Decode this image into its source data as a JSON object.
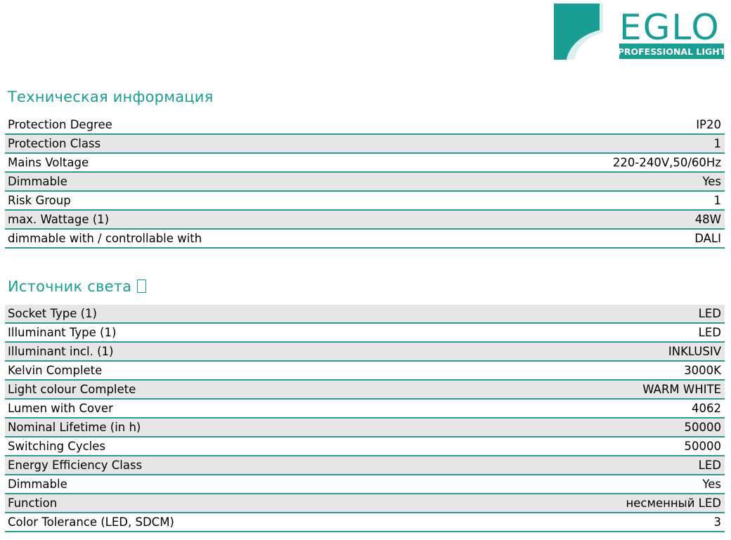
{
  "brand": {
    "name": "EGLO",
    "tagline": "PROFESSIONAL LIGHT",
    "color": "#1a9e94"
  },
  "sections": [
    {
      "title": "Техническая информация",
      "rows": [
        {
          "label": "Protection Degree",
          "value": "IP20"
        },
        {
          "label": "Protection Class",
          "value": "1"
        },
        {
          "label": "Mains Voltage",
          "value": "220-240V,50/60Hz"
        },
        {
          "label": "Dimmable",
          "value": "Yes"
        },
        {
          "label": "Risk Group",
          "value": "1"
        },
        {
          "label": "max. Wattage (1)",
          "value": "48W"
        },
        {
          "label": "dimmable with / controllable with",
          "value": "DALI"
        }
      ]
    },
    {
      "title": "Источник света ",
      "title_icon": "light-bulb-icon",
      "rows": [
        {
          "label": "Socket Type (1)",
          "value": "LED"
        },
        {
          "label": "Illuminant Type (1)",
          "value": "LED"
        },
        {
          "label": "Illuminant incl. (1)",
          "value": "INKLUSIV"
        },
        {
          "label": "Kelvin Complete",
          "value": "3000K"
        },
        {
          "label": "Light colour Complete",
          "value": "WARM WHITE"
        },
        {
          "label": "Lumen with Cover",
          "value": "4062"
        },
        {
          "label": "Nominal Lifetime (in h)",
          "value": "50000"
        },
        {
          "label": "Switching Cycles",
          "value": "50000"
        },
        {
          "label": "Energy Efficiency Class",
          "value": "LED"
        },
        {
          "label": "Dimmable",
          "value": "Yes"
        },
        {
          "label": "Function",
          "value": "несменный LED"
        },
        {
          "label": "Color Tolerance (LED, SDCM)",
          "value": "3"
        }
      ]
    }
  ]
}
